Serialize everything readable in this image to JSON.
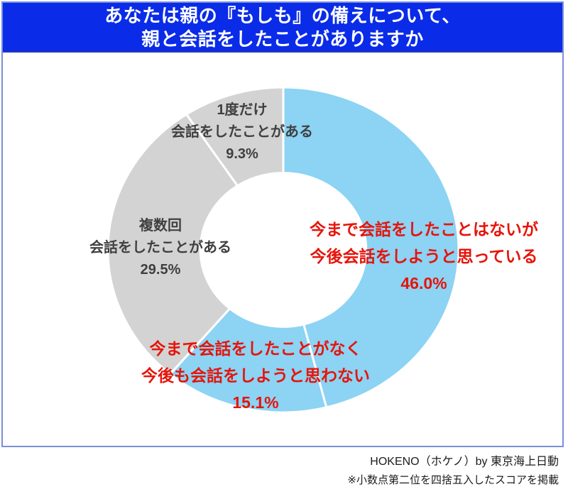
{
  "header": {
    "line1": "あなたは親の『もしも』の備えについて、",
    "line2": "親と会話をしたことがありますか"
  },
  "footer": {
    "credit": "HOKENO（ホケノ）by 東京海上日動",
    "note": "※小数点第二位を四捨五入したスコアを掲載"
  },
  "colors": {
    "header_bg": "#0a2ce8",
    "header_border": "#2735b5",
    "frame_border": "#7b8fd9",
    "segment_cyan": "#8cd3f4",
    "segment_gray": "#d3d3d3",
    "label_red": "#e6140a",
    "label_dark": "#404040",
    "footer_text": "#1c1c1c"
  },
  "chart_data": {
    "type": "pie",
    "donut": true,
    "title": "あなたは親の『もしも』の備えについて、親と会話をしたことがありますか",
    "direction": "clockwise",
    "start_angle_deg_from_top": 0,
    "hole_ratio": 0.473,
    "legend_position": "labels-on-chart",
    "segments": [
      {
        "label_lines": [
          "今まで会話をしたことはないが",
          "今後会話をしようと思っている"
        ],
        "value": 46.0,
        "display": "46.0%",
        "color": "#8cd3f4",
        "label_color": "#e6140a"
      },
      {
        "label_lines": [
          "今まで会話をしたことがなく",
          "今後も会話をしようと思わない"
        ],
        "value": 15.1,
        "display": "15.1%",
        "color": "#8cd3f4",
        "label_color": "#e6140a"
      },
      {
        "label_lines": [
          "複数回",
          "会話をしたことがある"
        ],
        "value": 29.5,
        "display": "29.5%",
        "color": "#d3d3d3",
        "label_color": "#404040"
      },
      {
        "label_lines": [
          "1度だけ",
          "会話をしたことがある"
        ],
        "value": 9.3,
        "display": "9.3%",
        "color": "#d3d3d3",
        "label_color": "#404040"
      }
    ]
  }
}
